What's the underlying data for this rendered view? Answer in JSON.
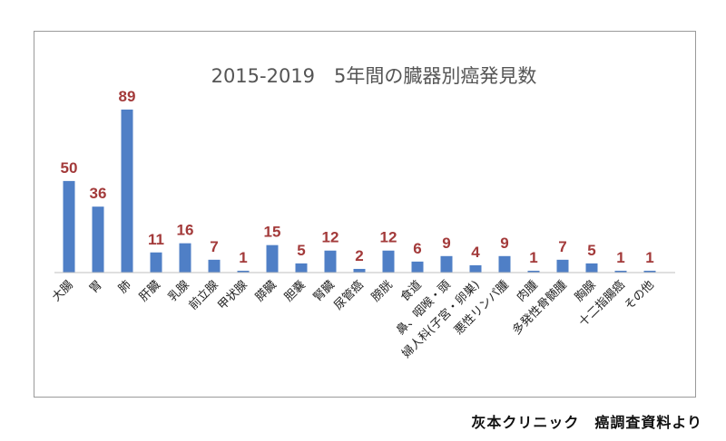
{
  "chart_data": {
    "type": "bar",
    "title": "2015-2019　5年間の臓器別癌発見数",
    "categories": [
      "大腸",
      "胃",
      "肺",
      "肝臓",
      "乳腺",
      "前立腺",
      "甲状腺",
      "膵臓",
      "胆嚢",
      "腎臓",
      "尿管癌",
      "膀胱",
      "食道",
      "鼻、咽喉・頭",
      "婦人科(子宮・卵巣)",
      "悪性リンパ腫",
      "肉腫",
      "多発性骨髄腫",
      "胸腺",
      "十二指腸癌",
      "その他"
    ],
    "values": [
      50,
      36,
      89,
      11,
      16,
      7,
      1,
      15,
      5,
      12,
      2,
      12,
      6,
      9,
      4,
      9,
      1,
      7,
      5,
      1,
      1
    ],
    "ylim": [
      0,
      89
    ],
    "grid": false,
    "bar_color": "#4f7fc6",
    "label_color": "#a33a3a"
  },
  "footer": {
    "source": "灰本クリニック　癌調査資料より"
  }
}
